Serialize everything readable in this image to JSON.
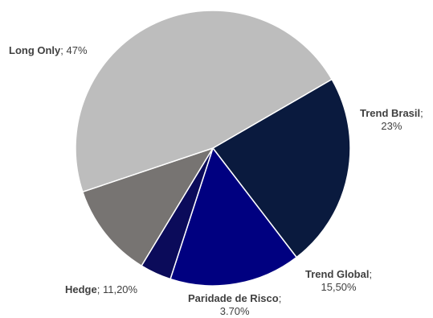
{
  "chart_data": {
    "type": "pie",
    "title": "",
    "slices": [
      {
        "name": "Trend Brasil",
        "value": 23,
        "display": "23%",
        "color": "#0a1a3e"
      },
      {
        "name": "Trend Global",
        "value": 15.5,
        "display": "15,50%",
        "color": "#000080"
      },
      {
        "name": "Paridade de Risco",
        "value": 3.7,
        "display": "3.70%",
        "color": "#0b0b5a"
      },
      {
        "name": "Hedge",
        "value": 11.2,
        "display": "11,20%",
        "color": "#777472"
      },
      {
        "name": "Long Only",
        "value": 47,
        "display": "47%",
        "color": "#bdbdbd"
      }
    ],
    "start_angle_deg": 60,
    "direction": "clockwise",
    "border_color": "#ffffff",
    "legend": "none",
    "data_labels": "outside"
  }
}
